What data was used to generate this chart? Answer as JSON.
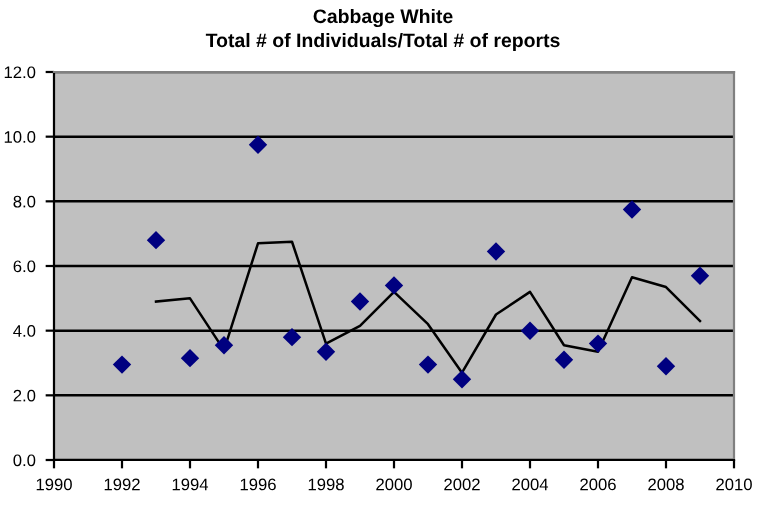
{
  "chart_data": {
    "type": "scatter",
    "title": "Cabbage White",
    "subtitle": "Total # of Individuals/Total # of reports",
    "series": [
      {
        "color": "#000080",
        "marker": "diamond",
        "x": [
          1992,
          1993,
          1994,
          1995,
          1996,
          1997,
          1998,
          1999,
          2000,
          2001,
          2002,
          2003,
          2004,
          2005,
          2006,
          2007,
          2008,
          2009
        ],
        "values": [
          2.95,
          6.8,
          3.15,
          3.55,
          9.75,
          3.8,
          3.35,
          4.9,
          5.4,
          2.95,
          2.5,
          6.45,
          4.0,
          3.1,
          3.6,
          7.75,
          2.9,
          5.7
        ]
      },
      {
        "type": "line",
        "color": "#000000",
        "marker": "none",
        "x": [
          1993,
          1994,
          1995,
          1996,
          1997,
          1998,
          1999,
          2000,
          2001,
          2002,
          2003,
          2004,
          2005,
          2006,
          2007,
          2008,
          2009
        ],
        "values": [
          4.9,
          5.0,
          3.4,
          6.7,
          6.75,
          3.6,
          4.15,
          5.2,
          4.2,
          2.7,
          4.5,
          5.2,
          3.55,
          3.35,
          5.65,
          5.35,
          4.3
        ]
      }
    ],
    "xlim": [
      1990,
      2010
    ],
    "xticks": [
      1990,
      1992,
      1994,
      1996,
      1998,
      2000,
      2002,
      2004,
      2006,
      2008,
      2010
    ],
    "ylim": [
      0,
      12
    ],
    "yticks": [
      {
        "value": 0,
        "label": "0.0"
      },
      {
        "value": 2,
        "label": "2.0"
      },
      {
        "value": 4,
        "label": "4.0"
      },
      {
        "value": 6,
        "label": "6.0"
      },
      {
        "value": 8,
        "label": "8.0"
      },
      {
        "value": 10,
        "label": "10.0"
      },
      {
        "value": 12,
        "label": "12.0"
      }
    ],
    "grid": "y",
    "legend": false
  }
}
